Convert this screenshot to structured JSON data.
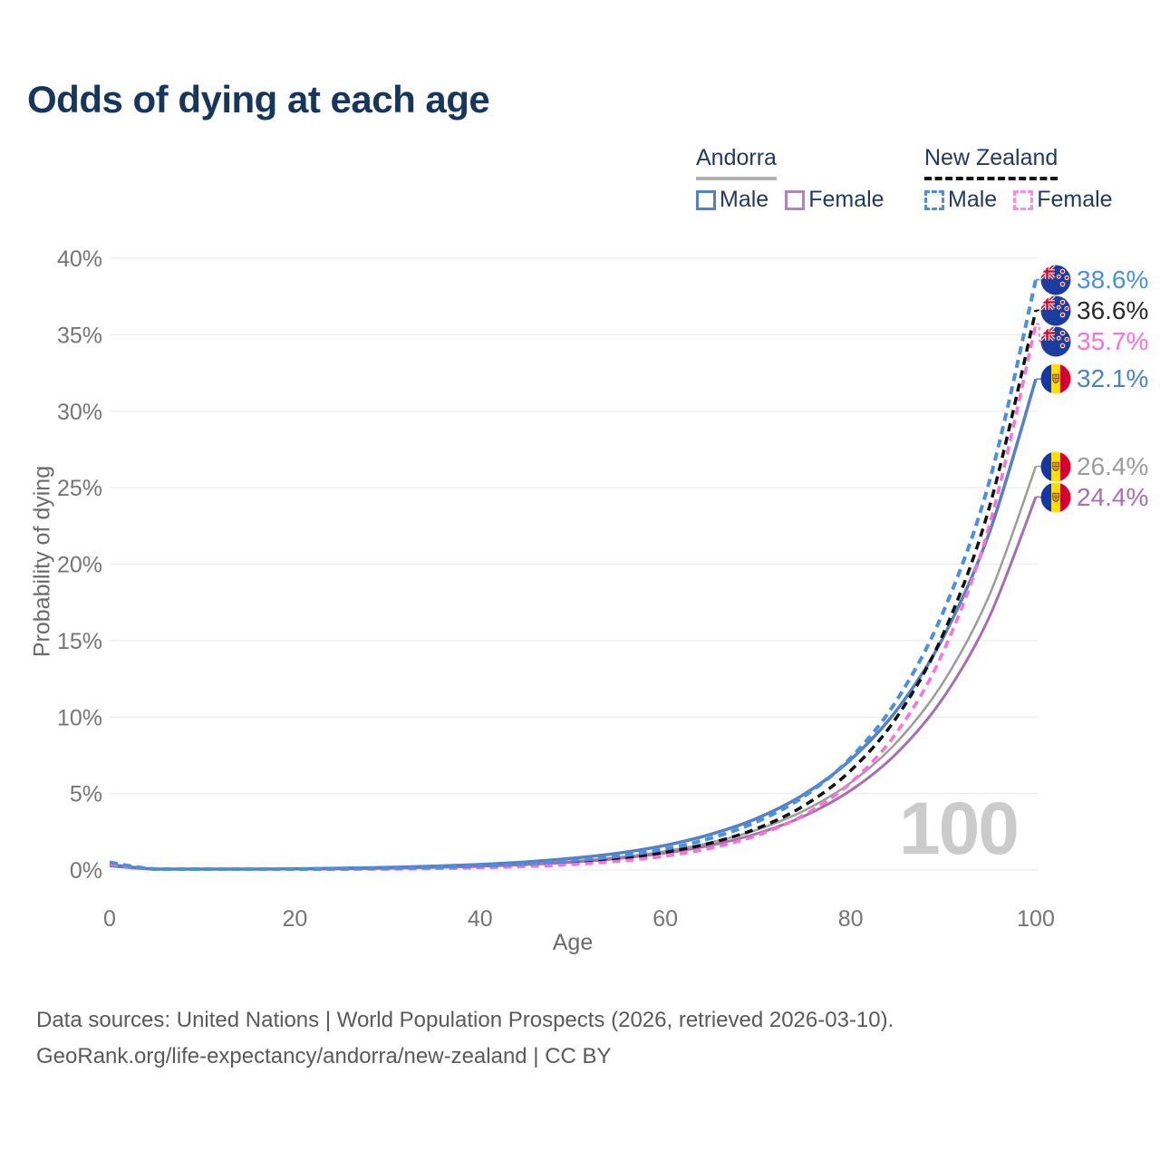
{
  "title": "Odds of dying at each age",
  "legend": {
    "groups": [
      {
        "country": "Andorra",
        "line_style": "solid",
        "underline_color": "#b0b0b0",
        "items": [
          {
            "label": "Male",
            "color": "#5580c4",
            "dash": false
          },
          {
            "label": "Female",
            "color": "#b284bc",
            "dash": false
          }
        ]
      },
      {
        "country": "New Zealand",
        "line_style": "dashed",
        "underline_color": "#111111",
        "items": [
          {
            "label": "Male",
            "color": "#4a90e2",
            "dash": true
          },
          {
            "label": "Female",
            "color": "#ff8ae4",
            "dash": true
          }
        ]
      }
    ]
  },
  "chart_data": {
    "type": "line",
    "title": "Odds of dying at each age",
    "xlabel": "Age",
    "ylabel": "Probability of dying",
    "xlim": [
      0,
      100
    ],
    "ylim": [
      0,
      40
    ],
    "x_ticks": [
      0,
      20,
      40,
      60,
      80,
      100
    ],
    "y_ticks": [
      "0%",
      "5%",
      "10%",
      "15%",
      "20%",
      "25%",
      "30%",
      "35%",
      "40%"
    ],
    "grid": "horizontal",
    "legend_position": "top-right",
    "watermark": "100",
    "ages": [
      0,
      5,
      10,
      15,
      20,
      25,
      30,
      35,
      40,
      45,
      50,
      55,
      60,
      65,
      70,
      75,
      80,
      85,
      90,
      95,
      100
    ],
    "series": [
      {
        "name": "Andorra Total",
        "country": "andorra",
        "sex": "total",
        "color": "#9c9c9c",
        "dash": false,
        "width": 2.5,
        "end_label": "26.4%",
        "label_color": "#9c9c9c",
        "values": [
          0.3,
          0.02,
          0.03,
          0.04,
          0.06,
          0.08,
          0.12,
          0.18,
          0.27,
          0.39,
          0.57,
          0.84,
          1.23,
          1.81,
          2.65,
          3.89,
          5.7,
          8.37,
          12.27,
          18.0,
          26.4
        ]
      },
      {
        "name": "Andorra Female",
        "country": "andorra",
        "sex": "female",
        "color": "#a56fb0",
        "dash": false,
        "width": 3,
        "end_label": "24.4%",
        "label_color": "#a56fb0",
        "values": [
          0.27,
          0.02,
          0.02,
          0.03,
          0.05,
          0.07,
          0.11,
          0.16,
          0.24,
          0.35,
          0.51,
          0.75,
          1.11,
          1.63,
          2.4,
          3.53,
          5.2,
          7.65,
          11.26,
          16.58,
          24.4
        ]
      },
      {
        "name": "Andorra Male",
        "country": "andorra",
        "sex": "male",
        "color": "#5580c4",
        "dash": false,
        "width": 3.5,
        "end_label": "32.1%",
        "label_color": "#4a82ca",
        "values": [
          0.35,
          0.03,
          0.04,
          0.06,
          0.08,
          0.12,
          0.17,
          0.25,
          0.36,
          0.53,
          0.77,
          1.11,
          1.61,
          2.35,
          3.41,
          4.96,
          7.21,
          10.47,
          15.21,
          22.1,
          32.1
        ]
      },
      {
        "name": "New Zealand Total",
        "country": "new-zealand",
        "sex": "total",
        "color": "#111111",
        "dash": true,
        "width": 3.5,
        "end_label": "36.6%",
        "label_color": "#2b2b2b",
        "values": [
          0.45,
          0.02,
          0.02,
          0.03,
          0.04,
          0.06,
          0.09,
          0.13,
          0.2,
          0.32,
          0.49,
          0.75,
          1.16,
          1.78,
          2.74,
          4.22,
          6.5,
          10.01,
          15.43,
          23.76,
          36.6
        ]
      },
      {
        "name": "New Zealand Female",
        "country": "new-zealand",
        "sex": "female",
        "color": "#ff6fd8",
        "dash": true,
        "width": 3.5,
        "end_label": "35.7%",
        "label_color": "#ff6fd8",
        "values": [
          0.4,
          0.01,
          0.01,
          0.01,
          0.02,
          0.04,
          0.06,
          0.09,
          0.15,
          0.23,
          0.36,
          0.58,
          0.91,
          1.44,
          2.28,
          3.61,
          5.7,
          9.02,
          14.27,
          22.57,
          35.7
        ]
      },
      {
        "name": "New Zealand Male",
        "country": "new-zealand",
        "sex": "male",
        "color": "#4a90e2",
        "dash": true,
        "width": 4,
        "end_label": "38.6%",
        "label_color": "#4a90e2",
        "values": [
          0.5,
          0.03,
          0.03,
          0.04,
          0.05,
          0.08,
          0.11,
          0.17,
          0.26,
          0.4,
          0.6,
          0.91,
          1.38,
          2.1,
          3.19,
          4.83,
          7.33,
          11.12,
          16.87,
          25.45,
          38.6
        ]
      }
    ]
  },
  "footer": {
    "line1": "Data sources: United Nations | World Population Prospects (2026, retrieved 2026-03-10).",
    "line2": "GeoRank.org/life-expectancy/andorra/new-zealand | CC BY"
  }
}
